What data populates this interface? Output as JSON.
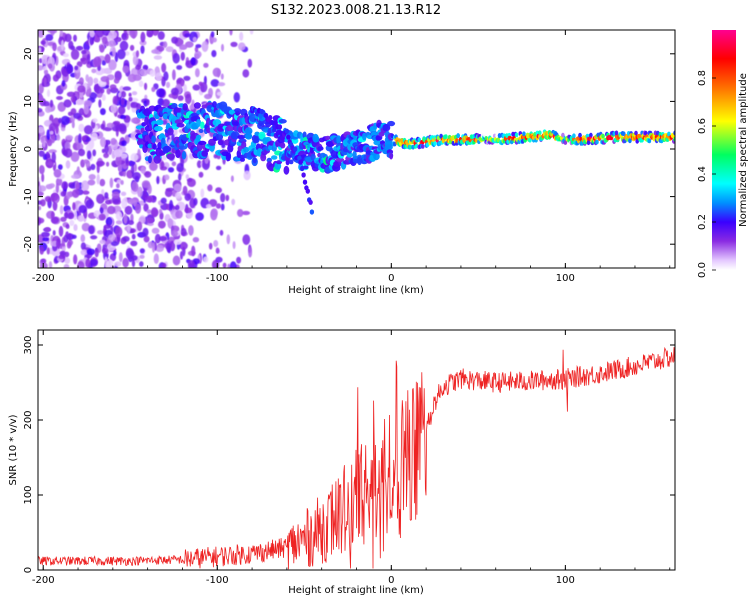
{
  "title": "S132.2023.008.21.13.R12",
  "chart_data": [
    {
      "type": "heatmap",
      "xlabel": "Height of straight line (km)",
      "ylabel": "Frequency (Hz)",
      "xlim": [
        -203,
        163
      ],
      "ylim": [
        -25,
        25
      ],
      "xticks": [
        -200,
        -100,
        0,
        100
      ],
      "xtick_labels": [
        "-200",
        "-100",
        "0",
        "100"
      ],
      "yticks": [
        -20,
        -10,
        0,
        10,
        20
      ],
      "ytick_labels": [
        "-20",
        "-10",
        "0",
        "10",
        "20"
      ],
      "colorbar": {
        "label": "Normalized spectral amplitude",
        "range": [
          0,
          1
        ],
        "ticks": [
          0.0,
          0.2,
          0.4,
          0.6,
          0.8
        ],
        "tick_labels": [
          "0.0",
          "0.2",
          "0.4",
          "0.6",
          "0.8"
        ],
        "colors": [
          "#ffffff",
          "#e4c8ff",
          "#8a2be2",
          "#3a00ff",
          "#0090ff",
          "#00ffff",
          "#00ff60",
          "#ffff00",
          "#ff7000",
          "#ff0000",
          "#ff0090"
        ]
      },
      "ridge": {
        "x": [
          -140,
          -120,
          -100,
          -85,
          -75,
          -65,
          -55,
          -45,
          -35,
          -25,
          -15,
          -5,
          0,
          10,
          30,
          60,
          80,
          90,
          100,
          110,
          130,
          163
        ],
        "frequency": [
          3,
          4,
          4,
          3,
          2,
          1,
          0,
          -1,
          -1,
          0,
          1,
          2,
          2,
          1,
          2,
          2,
          2.5,
          3,
          2,
          2,
          2.5,
          2.5
        ]
      },
      "noise_region_x": [
        -203,
        -100
      ],
      "branch": {
        "x": [
          -80,
          -70,
          -60,
          -52,
          -48,
          -45
        ],
        "frequency": [
          9,
          6,
          3,
          -3,
          -9,
          -14
        ]
      }
    },
    {
      "type": "line",
      "xlabel": "Height of straight line (km)",
      "ylabel": "SNR (10 * v/v)",
      "xlim": [
        -203,
        163
      ],
      "ylim": [
        0,
        320
      ],
      "xticks": [
        -200,
        -100,
        0,
        100
      ],
      "xtick_labels": [
        "-200",
        "-100",
        "0",
        "100"
      ],
      "yticks": [
        0,
        100,
        200,
        300
      ],
      "ytick_labels": [
        "0",
        "100",
        "200",
        "300"
      ],
      "color": "#ee2222",
      "trend": {
        "x": [
          -203,
          -150,
          -120,
          -100,
          -80,
          -60,
          -50,
          -40,
          -30,
          -20,
          -10,
          0,
          10,
          20,
          25,
          30,
          40,
          60,
          80,
          100,
          120,
          140,
          163
        ],
        "snr": [
          12,
          12,
          14,
          18,
          22,
          30,
          40,
          55,
          75,
          95,
          115,
          130,
          150,
          185,
          225,
          245,
          255,
          250,
          252,
          255,
          262,
          272,
          285
        ]
      }
    }
  ]
}
